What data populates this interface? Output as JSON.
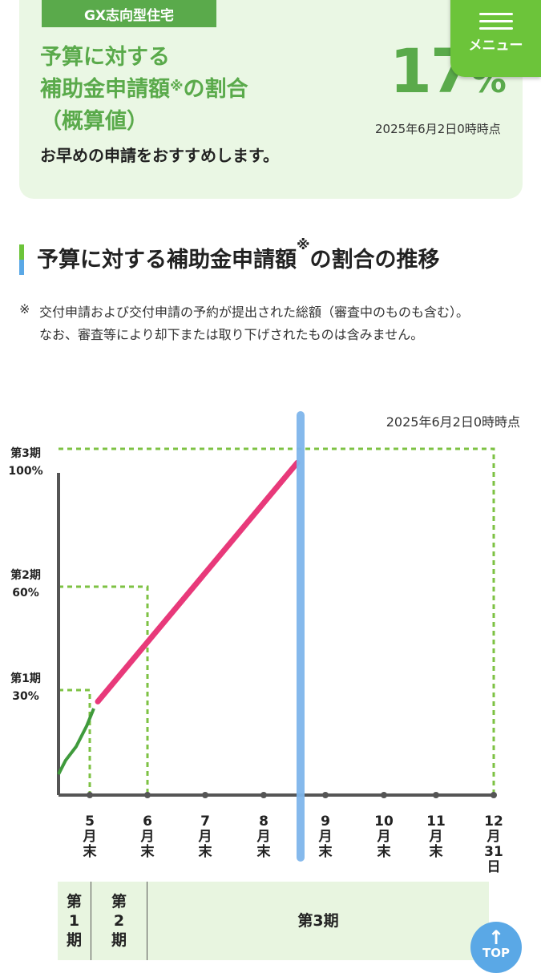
{
  "header": {
    "tag": "GX志向型住宅",
    "heading_line1": "予算に対する",
    "heading_line2": "補助金申請額",
    "heading_mark": "※",
    "heading_line2b": "の割合",
    "heading_line3": "（概算値）",
    "percent_value": "17",
    "percent_unit": "%",
    "as_of": "2025年6月2日0時時点",
    "advice": "お早めの申請をおすすめします。"
  },
  "menu": {
    "label": "メニュー"
  },
  "section": {
    "title_a": "予算に対する補助金申請額",
    "title_mark": "※",
    "title_b": "の割合の推移"
  },
  "note": {
    "mark": "※",
    "line1": "交付申請および交付申請の予約が提出された総額（審査中のものも含む）。",
    "line2": "なお、審査等により却下または取り下げされたものは含みません。"
  },
  "chart_data": {
    "type": "line",
    "as_of": "2025年6月2日0時時点",
    "y_ticks": [
      {
        "period": "第1期",
        "value": "30%"
      },
      {
        "period": "第2期",
        "value": "60%"
      },
      {
        "period": "第3期",
        "value": "100%"
      }
    ],
    "categories": [
      "5月末",
      "6月末",
      "7月末",
      "8月末",
      "9月末",
      "10月末",
      "11月末",
      "12月31日"
    ],
    "x_labels": [
      [
        "5",
        "月",
        "末"
      ],
      [
        "6",
        "月",
        "末"
      ],
      [
        "7",
        "月",
        "末"
      ],
      [
        "8",
        "月",
        "末"
      ],
      [
        "9",
        "月",
        "末"
      ],
      [
        "10",
        "月",
        "末"
      ],
      [
        "11",
        "月",
        "末"
      ],
      [
        "12",
        "月",
        "31",
        "日"
      ]
    ],
    "series": [
      {
        "name": "",
        "color": "#3f9a3c",
        "points": [
          [
            0,
            0.06
          ],
          [
            0.2,
            0.1
          ],
          [
            0.5,
            0.14
          ],
          [
            0.8,
            0.2
          ],
          [
            1,
            0.25
          ]
        ]
      },
      {
        "name": "",
        "color": "#e8397a",
        "points": [
          [
            1.1,
            0.27
          ],
          [
            3.55,
            0.96
          ]
        ]
      }
    ],
    "current_marker": {
      "x": 3.55,
      "color": "#7fb6ec"
    },
    "colors": {
      "grid": "#7dc243",
      "axis": "#555555"
    }
  },
  "period_bar": {
    "p1": "第\n1\n期",
    "p2": "第\n2\n期",
    "p3": "第3期"
  },
  "top_button": {
    "label": "TOP",
    "arrow": "↑"
  }
}
